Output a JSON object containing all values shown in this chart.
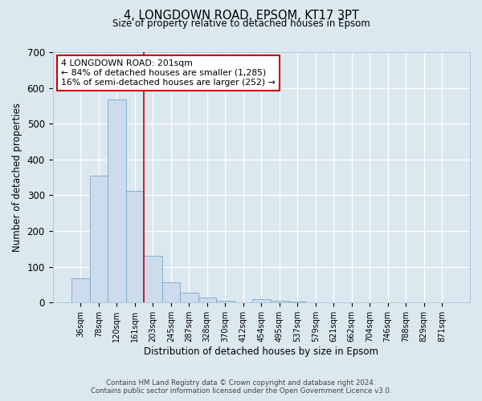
{
  "title": "4, LONGDOWN ROAD, EPSOM, KT17 3PT",
  "subtitle": "Size of property relative to detached houses in Epsom",
  "xlabel": "Distribution of detached houses by size in Epsom",
  "ylabel": "Number of detached properties",
  "bar_labels": [
    "36sqm",
    "78sqm",
    "120sqm",
    "161sqm",
    "203sqm",
    "245sqm",
    "287sqm",
    "328sqm",
    "370sqm",
    "412sqm",
    "454sqm",
    "495sqm",
    "537sqm",
    "579sqm",
    "621sqm",
    "662sqm",
    "704sqm",
    "746sqm",
    "788sqm",
    "829sqm",
    "871sqm"
  ],
  "bar_values": [
    68,
    355,
    568,
    313,
    130,
    57,
    27,
    15,
    5,
    0,
    10,
    5,
    4,
    0,
    0,
    0,
    0,
    0,
    0,
    0,
    0
  ],
  "bar_color": "#ccdcec",
  "bar_edge_color": "#7aaac8",
  "vline_x_index": 4,
  "vline_color": "#cc0000",
  "annotation_title": "4 LONGDOWN ROAD: 201sqm",
  "annotation_line1": "← 84% of detached houses are smaller (1,285)",
  "annotation_line2": "16% of semi-detached houses are larger (252) →",
  "annotation_box_facecolor": "#ffffff",
  "annotation_box_edgecolor": "#cc0000",
  "ylim": [
    0,
    700
  ],
  "yticks": [
    0,
    100,
    200,
    300,
    400,
    500,
    600,
    700
  ],
  "background_color": "#dce8f0",
  "plot_bg_color": "#dce8f0",
  "grid_color": "#ffffff",
  "footer_line1": "Contains HM Land Registry data © Crown copyright and database right 2024.",
  "footer_line2": "Contains public sector information licensed under the Open Government Licence v3.0."
}
